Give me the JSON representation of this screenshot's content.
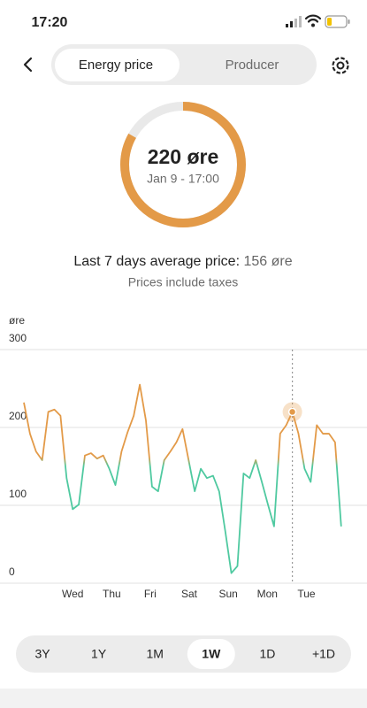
{
  "status_bar": {
    "time": "17:20"
  },
  "tabs": [
    "Energy price",
    "Producer"
  ],
  "gauge": {
    "value": 220,
    "unit": "øre",
    "date": "Jan 9 - 17:00"
  },
  "summary": {
    "label": "Last 7 days average price:",
    "average": 156,
    "unit": "øre",
    "note": "Prices include taxes"
  },
  "chart_data": {
    "type": "line",
    "y_label": "øre",
    "values": [
      232,
      192,
      169,
      158,
      220,
      223,
      215,
      135,
      95,
      101,
      164,
      167,
      160,
      164,
      147,
      126,
      169,
      194,
      215,
      255,
      209,
      124,
      118,
      158,
      169,
      181,
      198,
      158,
      118,
      147,
      135,
      138,
      118,
      67,
      13,
      22,
      141,
      135,
      158,
      130,
      101,
      73,
      192,
      203,
      220,
      192,
      147,
      130,
      203,
      192,
      192,
      181,
      73
    ],
    "color_above": "#e39a48",
    "color_below": "#4fc9a0",
    "ylim": [
      0,
      300
    ],
    "yticks": [
      0,
      100,
      200,
      300
    ],
    "grid": true,
    "xticks": [
      {
        "value": 8,
        "label": "Wed"
      },
      {
        "value": 14.4,
        "label": "Thu"
      },
      {
        "value": 20.7,
        "label": "Fri"
      },
      {
        "value": 27.1,
        "label": "Sat"
      },
      {
        "value": 33.5,
        "label": "Sun"
      },
      {
        "value": 39.9,
        "label": "Mon"
      },
      {
        "value": 46.3,
        "label": "Tue"
      }
    ],
    "selected_index": 44
  },
  "range_options": [
    "3Y",
    "1Y",
    "1M",
    "1W",
    "1D",
    "+1D"
  ]
}
